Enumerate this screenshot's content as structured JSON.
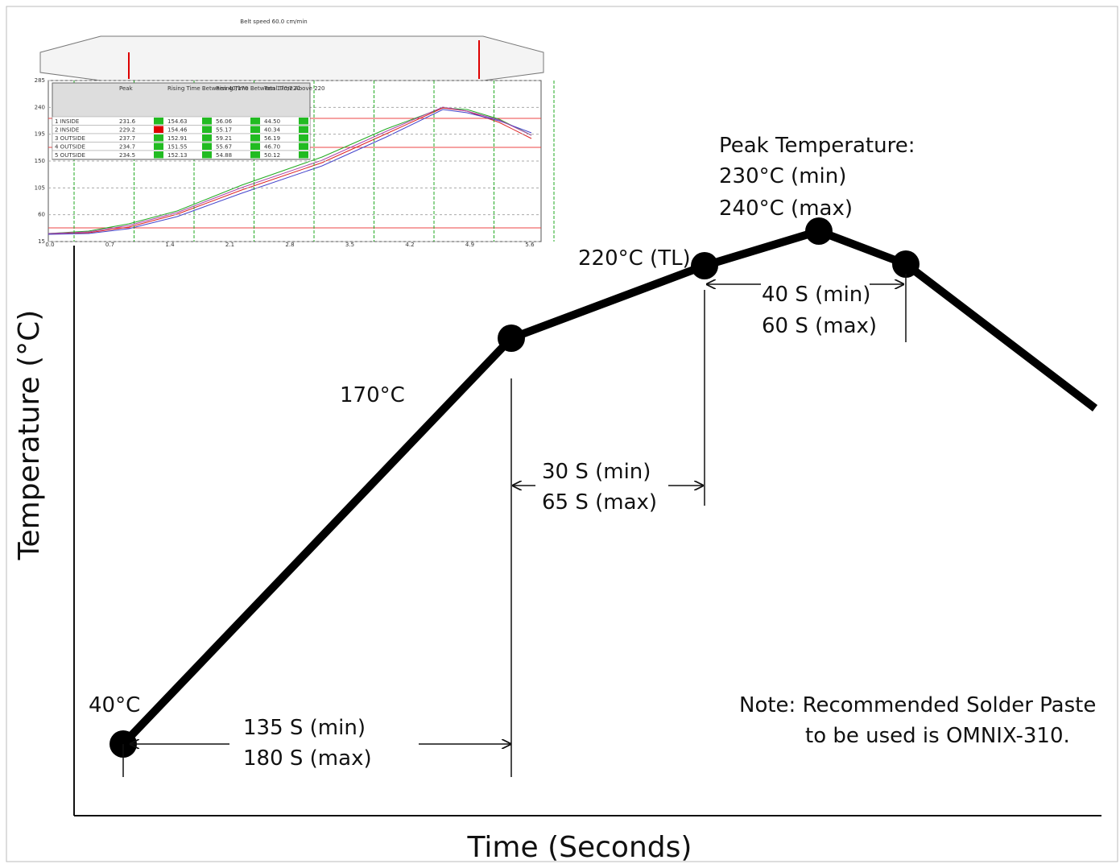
{
  "axes": {
    "x_label": "Time (Seconds)",
    "y_label": "Temperature (°C)"
  },
  "annotations": {
    "start": "40°C",
    "preheat_time": [
      "135 S (min)",
      "180 S (max)"
    ],
    "soak": "170°C",
    "soak_time": [
      "30 S (min)",
      "65 S (max)"
    ],
    "liquidus": "220°C (TL)",
    "above_liquidus_time": [
      "40 S (min)",
      "60 S (max)"
    ],
    "peak": [
      "Peak Temperature:",
      "230°C (min)",
      "240°C (max)"
    ],
    "note": [
      "Note: Recommended Solder Paste",
      "to be used is OMNIX-310."
    ]
  },
  "inset": {
    "title": "Belt speed 60.0 cm/min",
    "yticks": [
      "285",
      "240",
      "195",
      "150",
      "105",
      "60",
      "15"
    ],
    "xticks": [
      "0.0",
      "0.7",
      "1.4",
      "2.1",
      "2.8",
      "3.5",
      "4.2",
      "4.9",
      "5.6"
    ],
    "table": {
      "header": [
        "",
        "Peak",
        "Rising Time Between 40/170",
        "Rising Time Between 170/220",
        "Total Time Above 220"
      ],
      "rows": [
        [
          "1 INSIDE",
          "231.6",
          "154.63",
          "56.06",
          "44.50"
        ],
        [
          "2 INSIDE",
          "229.2",
          "154.46",
          "55.17",
          "40.34"
        ],
        [
          "3 OUTSIDE",
          "237.7",
          "152.91",
          "59.21",
          "56.19"
        ],
        [
          "4 OUTSIDE",
          "234.7",
          "151.55",
          "55.67",
          "46.70"
        ],
        [
          "5 OUTSIDE",
          "234.5",
          "152.13",
          "54.88",
          "50.12"
        ]
      ]
    }
  }
}
